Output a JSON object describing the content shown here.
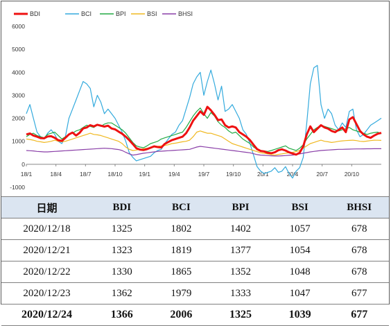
{
  "chart_data": {
    "type": "line",
    "ylim": [
      -1000,
      6000
    ],
    "y_ticks": [
      "6000",
      "5000",
      "4000",
      "3000",
      "2000",
      "1000",
      "0",
      "-1000"
    ],
    "y_tick_values": [
      6000,
      5000,
      4000,
      3000,
      2000,
      1000,
      0,
      -1000
    ],
    "x_tick_labels": [
      "18/1",
      "18/4",
      "18/7",
      "18/10",
      "19/1",
      "19/4",
      "19/7",
      "19/10",
      "20/1",
      "20/4",
      "20/7",
      "20/10"
    ],
    "x_range_months": [
      0,
      36
    ],
    "legend_position": "top-left",
    "grid": false,
    "series": [
      {
        "name": "BDI",
        "color": "#ee1111",
        "width": 3,
        "values": [
          1300,
          1340,
          1250,
          1200,
          1140,
          1130,
          1210,
          1220,
          1150,
          1050,
          1020,
          1150,
          1300,
          1380,
          1250,
          1370,
          1560,
          1600,
          1700,
          1650,
          1720,
          1680,
          1640,
          1680,
          1560,
          1520,
          1420,
          1330,
          1200,
          1050,
          880,
          700,
          640,
          620,
          660,
          720,
          780,
          750,
          730,
          890,
          970,
          1050,
          1100,
          1150,
          1200,
          1350,
          1600,
          1900,
          2100,
          2300,
          2150,
          2500,
          2350,
          2150,
          1920,
          1950,
          1700,
          1600,
          1650,
          1600,
          1400,
          1300,
          1200,
          1050,
          850,
          660,
          580,
          560,
          500,
          480,
          520,
          610,
          650,
          600,
          520,
          470,
          420,
          500,
          780,
          1300,
          1650,
          1400,
          1550,
          1700,
          1600,
          1550,
          1450,
          1400,
          1500,
          1600,
          1400,
          1950,
          2050,
          1750,
          1450,
          1300,
          1200,
          1150,
          1250,
          1330,
          1366
        ]
      },
      {
        "name": "BCI",
        "color": "#33aadd",
        "width": 1.2,
        "values": [
          2200,
          2600,
          2000,
          1400,
          1200,
          1100,
          1350,
          1500,
          1300,
          1000,
          900,
          1200,
          2000,
          2400,
          2800,
          3200,
          3600,
          3500,
          3300,
          2500,
          3000,
          2700,
          2200,
          2400,
          2200,
          2000,
          1700,
          1400,
          1000,
          500,
          300,
          150,
          200,
          250,
          300,
          350,
          500,
          600,
          650,
          900,
          1100,
          1300,
          1400,
          1700,
          1900,
          2400,
          2900,
          3500,
          3800,
          4000,
          3000,
          3600,
          4100,
          3500,
          2800,
          3400,
          2300,
          2400,
          2600,
          2300,
          2000,
          1500,
          1300,
          900,
          400,
          -100,
          -300,
          -400,
          -350,
          -300,
          -150,
          -350,
          -300,
          -100,
          -400,
          -600,
          -300,
          -150,
          300,
          1800,
          3500,
          4200,
          4300,
          2600,
          2000,
          2400,
          2200,
          1700,
          1500,
          1800,
          1600,
          2300,
          2400,
          1500,
          1200,
          1300,
          1500,
          1700,
          1800,
          1900,
          2006
        ]
      },
      {
        "name": "BPI",
        "color": "#22aa44",
        "width": 1.2,
        "values": [
          1200,
          1300,
          1350,
          1250,
          1200,
          1150,
          1300,
          1350,
          1400,
          1250,
          1100,
          1200,
          1300,
          1350,
          1450,
          1500,
          1600,
          1700,
          1650,
          1600,
          1700,
          1650,
          1750,
          1800,
          1800,
          1700,
          1600,
          1500,
          1350,
          1150,
          950,
          800,
          750,
          720,
          800,
          900,
          950,
          1000,
          1100,
          1150,
          1200,
          1250,
          1300,
          1350,
          1400,
          1600,
          1850,
          2100,
          2300,
          2450,
          2200,
          2000,
          2250,
          2100,
          1850,
          1700,
          1600,
          1450,
          1350,
          1400,
          1250,
          1100,
          1000,
          900,
          750,
          650,
          600,
          580,
          560,
          600,
          650,
          700,
          750,
          800,
          700,
          650,
          600,
          700,
          850,
          1100,
          1300,
          1500,
          1600,
          1700,
          1650,
          1600,
          1550,
          1500,
          1450,
          1500,
          1550,
          1600,
          1500,
          1450,
          1400,
          1350,
          1300,
          1350,
          1380,
          1400,
          1325
        ]
      },
      {
        "name": "BSI",
        "color": "#f0b820",
        "width": 1.2,
        "values": [
          1100,
          1080,
          1050,
          1000,
          980,
          950,
          970,
          1000,
          1050,
          1000,
          980,
          1000,
          1050,
          1100,
          1150,
          1200,
          1250,
          1300,
          1350,
          1300,
          1280,
          1250,
          1200,
          1150,
          1100,
          1050,
          1000,
          900,
          750,
          650,
          600,
          620,
          650,
          680,
          700,
          720,
          750,
          780,
          800,
          820,
          850,
          900,
          920,
          950,
          980,
          1000,
          1050,
          1200,
          1400,
          1450,
          1400,
          1350,
          1350,
          1300,
          1250,
          1200,
          1100,
          1000,
          900,
          850,
          800,
          750,
          700,
          650,
          600,
          550,
          500,
          480,
          450,
          420,
          400,
          430,
          450,
          480,
          500,
          520,
          550,
          600,
          700,
          800,
          900,
          950,
          1000,
          1050,
          1000,
          980,
          950,
          970,
          1000,
          1020,
          1030,
          1040,
          1050,
          1030,
          1000,
          990,
          1010,
          1030,
          1050,
          1045,
          1039
        ]
      },
      {
        "name": "BHSI",
        "color": "#8a3fa8",
        "width": 1.2,
        "values": [
          600,
          590,
          580,
          560,
          550,
          540,
          540,
          550,
          560,
          570,
          580,
          590,
          600,
          610,
          620,
          630,
          640,
          650,
          660,
          670,
          680,
          690,
          700,
          690,
          680,
          660,
          640,
          600,
          520,
          450,
          400,
          420,
          450,
          480,
          500,
          520,
          540,
          560,
          570,
          580,
          590,
          600,
          610,
          620,
          630,
          640,
          650,
          700,
          750,
          780,
          760,
          740,
          720,
          700,
          680,
          660,
          640,
          620,
          600,
          580,
          560,
          540,
          520,
          500,
          460,
          420,
          400,
          390,
          380,
          370,
          360,
          360,
          370,
          380,
          390,
          400,
          420,
          450,
          480,
          510,
          540,
          560,
          580,
          600,
          610,
          620,
          630,
          640,
          650,
          650,
          655,
          660,
          665,
          668,
          670,
          672,
          674,
          676,
          678,
          677,
          677
        ]
      }
    ]
  },
  "table": {
    "headers": [
      "日期",
      "BDI",
      "BCI",
      "BPI",
      "BSI",
      "BHSI"
    ],
    "rows": [
      [
        "2020/12/18",
        "1325",
        "1802",
        "1402",
        "1057",
        "678"
      ],
      [
        "2020/12/21",
        "1323",
        "1819",
        "1377",
        "1054",
        "678"
      ],
      [
        "2020/12/22",
        "1330",
        "1865",
        "1352",
        "1048",
        "678"
      ],
      [
        "2020/12/23",
        "1362",
        "1979",
        "1333",
        "1047",
        "677"
      ],
      [
        "2020/12/24",
        "1366",
        "2006",
        "1325",
        "1039",
        "677"
      ]
    ]
  }
}
